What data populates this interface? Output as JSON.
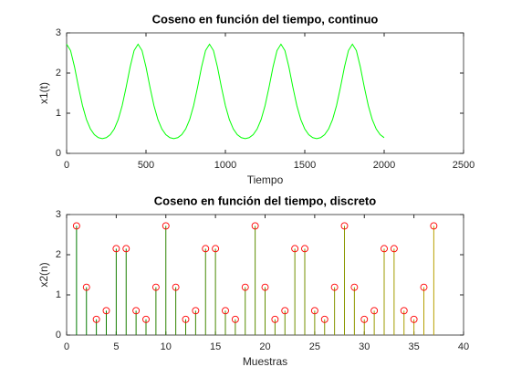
{
  "chart_data": [
    {
      "type": "line",
      "title": "Coseno en función del tiempo, continuo",
      "xlabel": "Tiempo",
      "ylabel": "x1(t)",
      "color": "#00ff00",
      "xlim": [
        0,
        2500
      ],
      "xticks": [
        0,
        500,
        1000,
        1500,
        2000,
        2500
      ],
      "ylim": [
        0,
        3
      ],
      "yticks": [
        0,
        1,
        2,
        3
      ],
      "x": [
        0,
        25,
        50,
        75,
        100,
        125,
        150,
        175,
        200,
        225,
        250,
        275,
        300,
        325,
        350,
        375,
        400,
        425,
        450,
        475,
        500,
        525,
        550,
        575,
        600,
        625,
        650,
        675,
        700,
        725,
        750,
        775,
        800,
        825,
        850,
        875,
        900,
        925,
        950,
        975,
        1000,
        1025,
        1050,
        1075,
        1100,
        1125,
        1150,
        1175,
        1200,
        1225,
        1250,
        1275,
        1300,
        1325,
        1350,
        1375,
        1400,
        1425,
        1450,
        1475,
        1500,
        1525,
        1550,
        1575,
        1600,
        1625,
        1650,
        1675,
        1700,
        1725,
        1750,
        1775,
        1800,
        1825,
        1850,
        1875,
        1900,
        1925,
        1950,
        1975,
        2000
      ],
      "values": [
        2.718,
        2.559,
        2.151,
        1.649,
        1.19,
        0.841,
        0.607,
        0.465,
        0.391,
        0.368,
        0.391,
        0.465,
        0.607,
        0.841,
        1.19,
        1.649,
        2.151,
        2.559,
        2.718,
        2.559,
        2.151,
        1.649,
        1.19,
        0.841,
        0.607,
        0.465,
        0.391,
        0.368,
        0.391,
        0.465,
        0.607,
        0.841,
        1.19,
        1.649,
        2.151,
        2.559,
        2.718,
        2.559,
        2.151,
        1.649,
        1.19,
        0.841,
        0.607,
        0.465,
        0.391,
        0.368,
        0.391,
        0.465,
        0.607,
        0.841,
        1.19,
        1.649,
        2.151,
        2.559,
        2.718,
        2.559,
        2.151,
        1.649,
        1.19,
        0.841,
        0.607,
        0.465,
        0.391,
        0.368,
        0.391,
        0.465,
        0.607,
        0.841,
        1.19,
        1.649,
        2.151,
        2.559,
        2.718,
        2.559,
        2.151,
        1.649,
        1.19,
        0.841,
        0.607,
        0.465,
        0.391
      ]
    },
    {
      "type": "stem",
      "title": "Coseno en función del tiempo, discreto",
      "xlabel": "Muestras",
      "ylabel": "x2(n)",
      "color_start": "#007a00",
      "color_end": "#b8a000",
      "marker_color": "#ff0000",
      "xlim": [
        0,
        40
      ],
      "xticks": [
        0,
        5,
        10,
        15,
        20,
        25,
        30,
        35,
        40
      ],
      "ylim": [
        0,
        3
      ],
      "yticks": [
        0,
        1,
        2,
        3
      ],
      "x": [
        1,
        2,
        3,
        4,
        5,
        6,
        7,
        8,
        9,
        10,
        11,
        12,
        13,
        14,
        15,
        16,
        17,
        18,
        19,
        20,
        21,
        22,
        23,
        24,
        25,
        26,
        27,
        28,
        29,
        30,
        31,
        32,
        33,
        34,
        35,
        36,
        37
      ],
      "values": [
        2.718,
        1.19,
        0.391,
        0.607,
        2.151,
        2.151,
        0.607,
        0.391,
        1.19,
        2.718,
        1.19,
        0.391,
        0.607,
        2.151,
        2.151,
        0.607,
        0.391,
        1.19,
        2.718,
        1.19,
        0.391,
        0.607,
        2.151,
        2.151,
        0.607,
        0.391,
        1.19,
        2.718,
        1.19,
        0.391,
        0.607,
        2.151,
        2.151,
        0.607,
        0.391,
        1.19,
        2.718
      ]
    }
  ]
}
